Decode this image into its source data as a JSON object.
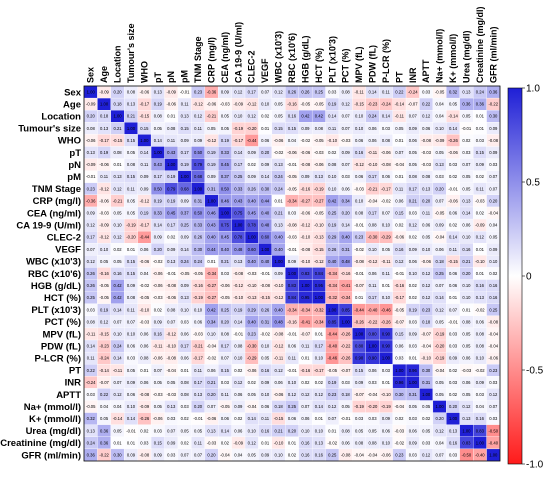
{
  "chart_data": {
    "type": "heatmap",
    "variables": [
      "Sex",
      "Age",
      "Location",
      "Tumour's size",
      "WHO",
      "pT",
      "pN",
      "pM",
      "TNM Stage",
      "CRP (mg/l)",
      "CEA (ng/ml)",
      "CA 19-9 (U/ml)",
      "CLEC-2",
      "VEGF",
      "WBC (x10'3)",
      "RBC (x10'6)",
      "HGB (g/dL)",
      "HCT (%)",
      "PLT (x10'3)",
      "PCT (%)",
      "MPV (fL)",
      "PDW (fL)",
      "P-LCR (%)",
      "PT",
      "INR",
      "APTT",
      "Na+ (mmol/l)",
      "K+ (mmol/l)",
      "Urea (mg/dl)",
      "Creatinine (mg/dl)",
      "GFR (ml/min)"
    ],
    "column_labels": [
      "Sex",
      "Age",
      "Location",
      "Tumour's size",
      "WHO",
      "pT",
      "pN",
      "pM",
      "TNM Stage",
      "CRP (mg/l)",
      "CEA (ng/ml)",
      "CA 19-9 (U/ml)",
      "CLEC-2",
      "VEGF",
      "WBC (x10'3)",
      "RBC (x10'6)",
      "HGB (g/dL)",
      "HCT (%)",
      "PLT (x10'3)",
      "PCT (%)",
      "MPV (fL)",
      "PDW (fL)",
      "P-LCR (%)",
      "PT",
      "INR",
      "APTT",
      "Na+ (mmol/l)",
      "K+ (mmol/l)",
      "Urea (mg/dl)",
      "Creatinine (mg/dl)",
      "GFR (ml/min)"
    ],
    "colorbar": {
      "range": [
        -1.0,
        1.0
      ],
      "ticks": [
        "1.0",
        "0.5",
        "0",
        "-0.5",
        "-1.0"
      ],
      "tick_values": [
        1.0,
        0.5,
        0,
        -0.5,
        -1.0
      ],
      "positive_color": "#1f1fd6",
      "zero_color": "#ffffff",
      "negative_color": "#ff1a1a"
    },
    "matrix": [
      [
        1.0,
        -0.09,
        0.2,
        0.08,
        -0.06,
        0.13,
        -0.09,
        -0.01,
        0.23,
        -0.36,
        0.09,
        0.12,
        0.17,
        0.07,
        0.12,
        0.26,
        0.26,
        0.25,
        0.03,
        0.08,
        -0.11,
        0.14,
        0.11,
        0.22,
        -0.24,
        0.03,
        -0.05,
        0.32,
        0.13,
        0.24,
        0.36
      ],
      [
        -0.09,
        1.0,
        0.18,
        0.13,
        -0.17,
        0.19,
        -0.06,
        0.11,
        -0.12,
        -0.06,
        -0.03,
        -0.09,
        -0.12,
        0.1,
        0.05,
        -0.16,
        -0.05,
        -0.05,
        0.19,
        0.12,
        -0.15,
        -0.23,
        -0.24,
        -0.14,
        -0.07,
        0.22,
        0.04,
        0.05,
        0.36,
        0.36,
        -0.22
      ],
      [
        0.2,
        0.18,
        1.0,
        0.21,
        -0.15,
        0.08,
        0.01,
        0.13,
        0.12,
        -0.21,
        0.05,
        0.1,
        0.12,
        0.02,
        0.05,
        0.16,
        0.42,
        0.42,
        0.14,
        0.07,
        0.1,
        0.24,
        0.14,
        -0.11,
        0.07,
        0.12,
        0.04,
        -0.14,
        0.05,
        0.01,
        0.3
      ],
      [
        0.08,
        0.13,
        0.21,
        1.0,
        0.15,
        0.05,
        0.08,
        0.15,
        0.11,
        0.05,
        0.05,
        -0.19,
        -0.2,
        0.01,
        0.15,
        0.15,
        0.09,
        0.08,
        0.11,
        0.07,
        0.1,
        0.06,
        0.03,
        0.05,
        0.09,
        0.06,
        0.1,
        0.14,
        -0.01,
        0.01,
        0.09
      ],
      [
        -0.06,
        -0.17,
        -0.15,
        0.15,
        1.0,
        0.14,
        0.11,
        0.09,
        0.09,
        -0.12,
        0.19,
        -0.17,
        -0.44,
        0.06,
        -0.06,
        0.04,
        -0.02,
        -0.05,
        -0.1,
        -0.03,
        0.06,
        0.06,
        0.08,
        0.01,
        0.06,
        -0.08,
        -0.09,
        -0.26,
        0.02,
        0.03,
        -0.08
      ],
      [
        0.13,
        0.19,
        0.08,
        0.05,
        0.14,
        1.0,
        0.43,
        0.17,
        0.5,
        0.19,
        0.33,
        0.14,
        0.09,
        0.2,
        -0.02,
        -0.06,
        -0.06,
        -0.03,
        0.02,
        0.09,
        0.16,
        -0.11,
        -0.06,
        0.07,
        0.05,
        -0.03,
        0.05,
        -0.06,
        0.03,
        0.15,
        0.09
      ],
      [
        -0.09,
        -0.06,
        0.01,
        0.08,
        0.11,
        0.43,
        1.0,
        0.19,
        0.79,
        0.19,
        0.45,
        0.17,
        0.02,
        0.09,
        0.13,
        -0.01,
        -0.08,
        -0.06,
        0.08,
        0.07,
        -0.12,
        -0.1,
        -0.08,
        -0.04,
        0.05,
        -0.03,
        0.13,
        0.03,
        0.07,
        0.09,
        0.03
      ],
      [
        -0.01,
        0.11,
        0.13,
        0.15,
        0.09,
        0.17,
        0.19,
        1.0,
        0.68,
        0.09,
        0.37,
        0.25,
        0.09,
        0.14,
        0.24,
        -0.05,
        0.09,
        0.13,
        0.1,
        0.03,
        0.06,
        0.17,
        0.06,
        0.01,
        0.08,
        0.08,
        0.03,
        0.02,
        0.05,
        0.02,
        0.07
      ],
      [
        0.23,
        -0.12,
        0.12,
        0.11,
        0.09,
        0.5,
        0.79,
        0.68,
        1.0,
        0.31,
        0.5,
        0.33,
        0.26,
        0.3,
        0.24,
        -0.05,
        -0.16,
        -0.19,
        0.1,
        0.06,
        -0.03,
        -0.21,
        -0.17,
        0.11,
        0.17,
        0.13,
        0.2,
        -0.01,
        0.05,
        0.11,
        0.07
      ],
      [
        -0.36,
        -0.06,
        -0.21,
        0.05,
        -0.12,
        0.19,
        0.19,
        0.09,
        0.31,
        1.0,
        0.46,
        0.43,
        0.4,
        0.44,
        0.01,
        -0.34,
        -0.27,
        -0.27,
        0.42,
        0.34,
        0.1,
        -0.04,
        -0.02,
        0.06,
        0.21,
        0.2,
        0.07,
        -0.06,
        0.13,
        -0.03,
        0.2
      ],
      [
        0.09,
        -0.03,
        0.05,
        0.05,
        0.19,
        0.33,
        0.45,
        0.37,
        0.5,
        0.46,
        1.0,
        0.75,
        0.45,
        0.4,
        0.21,
        0.03,
        -0.06,
        -0.05,
        0.25,
        0.2,
        0.08,
        0.17,
        0.07,
        0.15,
        0.03,
        0.11,
        -0.05,
        0.06,
        0.14,
        0.02,
        -0.04
      ],
      [
        0.12,
        -0.09,
        0.1,
        -0.19,
        -0.17,
        0.14,
        0.17,
        0.25,
        0.33,
        0.43,
        0.75,
        1.0,
        0.78,
        0.48,
        0.13,
        -0.08,
        -0.12,
        -0.1,
        0.19,
        0.14,
        -0.01,
        0.08,
        0.1,
        0.02,
        0.12,
        0.06,
        0.09,
        0.02,
        0.06,
        -0.09,
        0.04
      ],
      [
        0.17,
        -0.12,
        0.12,
        -0.2,
        -0.44,
        0.09,
        0.02,
        0.09,
        0.26,
        0.4,
        0.45,
        0.78,
        1.0,
        0.6,
        0.4,
        -0.03,
        -0.1,
        -0.13,
        0.29,
        0.4,
        0.23,
        -0.3,
        -0.29,
        -0.06,
        0.02,
        0.05,
        -0.04,
        0.14,
        0.1,
        0.12,
        0.05
      ],
      [
        0.07,
        0.1,
        0.02,
        0.01,
        0.06,
        0.2,
        0.09,
        0.14,
        0.3,
        0.44,
        0.4,
        0.48,
        0.6,
        1.0,
        0.4,
        -0.01,
        -0.08,
        -0.15,
        0.26,
        0.31,
        -0.02,
        0.1,
        0.05,
        0.16,
        0.09,
        0.1,
        0.06,
        0.11,
        0.16,
        0.01,
        0.09
      ],
      [
        0.12,
        0.05,
        0.05,
        0.15,
        -0.06,
        -0.02,
        0.13,
        0.24,
        0.24,
        0.01,
        0.21,
        0.13,
        0.4,
        0.4,
        1.0,
        0.09,
        -0.1,
        -0.12,
        0.4,
        0.48,
        -0.08,
        -0.12,
        -0.11,
        0.12,
        0.06,
        -0.06,
        0.18,
        -0.15,
        0.21,
        -0.1,
        0.1
      ],
      [
        0.26,
        -0.16,
        0.16,
        0.15,
        0.04,
        -0.06,
        -0.01,
        -0.05,
        -0.05,
        -0.34,
        0.03,
        -0.08,
        -0.03,
        -0.01,
        0.09,
        1.0,
        0.83,
        0.84,
        -0.34,
        -0.16,
        -0.01,
        0.06,
        0.11,
        -0.01,
        0.1,
        0.12,
        0.25,
        0.06,
        0.2,
        0.01,
        0.02
      ],
      [
        0.26,
        -0.05,
        0.42,
        0.09,
        -0.02,
        -0.06,
        -0.08,
        0.09,
        -0.16,
        -0.27,
        -0.06,
        -0.12,
        -0.1,
        -0.08,
        -0.1,
        0.83,
        1.0,
        0.95,
        -0.34,
        -0.41,
        -0.07,
        0.11,
        0.01,
        -0.16,
        0.02,
        0.12,
        0.07,
        0.06,
        0.1,
        0.16,
        0.16
      ],
      [
        0.25,
        -0.05,
        0.42,
        0.08,
        -0.05,
        -0.03,
        -0.06,
        0.13,
        -0.19,
        -0.27,
        -0.05,
        -0.1,
        -0.13,
        -0.15,
        -0.12,
        0.84,
        0.95,
        1.0,
        -0.32,
        -0.34,
        0.01,
        0.17,
        0.1,
        -0.17,
        0.02,
        0.12,
        0.14,
        0.01,
        0.1,
        0.13,
        0.16
      ],
      [
        0.03,
        0.19,
        0.14,
        0.11,
        -0.1,
        0.02,
        0.08,
        0.1,
        0.1,
        0.42,
        0.25,
        0.19,
        0.29,
        0.26,
        0.4,
        -0.34,
        -0.34,
        -0.32,
        1.0,
        0.85,
        -0.44,
        -0.4,
        -0.46,
        -0.05,
        0.19,
        0.23,
        0.12,
        0.07,
        0.01,
        -0.02,
        0.25
      ],
      [
        0.08,
        0.12,
        0.07,
        0.07,
        -0.03,
        0.09,
        0.07,
        0.03,
        0.06,
        0.34,
        0.2,
        0.14,
        0.4,
        0.31,
        0.48,
        -0.16,
        -0.41,
        -0.34,
        0.85,
        1.0,
        -0.26,
        -0.22,
        -0.26,
        -0.07,
        0.03,
        0.18,
        0.05,
        -0.01,
        0.08,
        0.06,
        -0.08
      ],
      [
        -0.11,
        -0.15,
        0.1,
        0.1,
        0.06,
        0.16,
        -0.12,
        0.06,
        -0.03,
        0.1,
        0.08,
        -0.01,
        0.23,
        -0.02,
        -0.08,
        -0.01,
        -0.07,
        0.01,
        -0.44,
        -0.26,
        1.0,
        0.8,
        0.9,
        0.15,
        0.09,
        -0.07,
        -0.19,
        0.03,
        0.05,
        0.08,
        -0.04
      ],
      [
        0.14,
        -0.23,
        0.24,
        0.06,
        0.06,
        -0.11,
        -0.1,
        0.17,
        -0.21,
        -0.04,
        0.17,
        0.08,
        -0.3,
        0.1,
        -0.12,
        0.06,
        0.11,
        0.17,
        -0.4,
        -0.22,
        0.8,
        1.0,
        0.9,
        0.06,
        0.03,
        -0.04,
        -0.2,
        0.03,
        0.05,
        0.08,
        -0.04
      ],
      [
        0.11,
        -0.24,
        0.14,
        0.03,
        0.08,
        -0.06,
        -0.08,
        0.06,
        -0.17,
        -0.02,
        0.07,
        0.1,
        -0.29,
        0.05,
        -0.11,
        0.11,
        0.01,
        0.1,
        -0.46,
        -0.26,
        0.9,
        0.9,
        1.0,
        0.03,
        0.01,
        -0.1,
        -0.19,
        0.09,
        0.06,
        0.1,
        -0.06
      ],
      [
        0.22,
        -0.14,
        -0.11,
        0.05,
        0.01,
        0.07,
        -0.04,
        0.01,
        0.11,
        0.06,
        0.15,
        0.02,
        -0.06,
        0.16,
        0.12,
        -0.01,
        -0.16,
        -0.17,
        -0.05,
        -0.07,
        0.15,
        0.06,
        0.03,
        1.0,
        0.96,
        0.3,
        -0.04,
        0.02,
        -0.03,
        -0.02,
        0.23
      ],
      [
        -0.24,
        -0.07,
        0.07,
        0.09,
        0.06,
        0.05,
        0.05,
        0.08,
        0.17,
        0.21,
        0.03,
        0.12,
        0.02,
        0.09,
        0.06,
        0.1,
        0.02,
        0.02,
        0.19,
        0.03,
        0.09,
        0.03,
        0.01,
        0.96,
        1.0,
        0.31,
        0.05,
        0.03,
        0.06,
        0.09,
        0.03
      ],
      [
        0.03,
        0.22,
        0.12,
        0.06,
        -0.08,
        -0.03,
        -0.03,
        0.08,
        0.13,
        0.2,
        0.11,
        0.06,
        0.05,
        0.1,
        -0.06,
        0.12,
        0.12,
        0.12,
        0.23,
        0.18,
        -0.07,
        -0.04,
        -0.1,
        0.3,
        0.31,
        1.0,
        0.05,
        0.02,
        0.05,
        0.03,
        0.12
      ],
      [
        -0.05,
        0.04,
        0.04,
        0.1,
        -0.09,
        0.05,
        0.13,
        0.03,
        0.2,
        0.07,
        -0.05,
        0.09,
        -0.04,
        0.06,
        0.18,
        0.25,
        0.07,
        0.14,
        0.12,
        0.05,
        -0.19,
        -0.2,
        -0.19,
        -0.04,
        0.05,
        0.05,
        1.0,
        0.2,
        0.12,
        0.04,
        0.07
      ],
      [
        0.32,
        0.05,
        -0.14,
        0.14,
        -0.26,
        -0.06,
        0.03,
        0.02,
        -0.01,
        -0.06,
        0.06,
        0.02,
        0.14,
        0.11,
        -0.15,
        0.06,
        0.06,
        0.01,
        0.07,
        -0.01,
        0.03,
        0.03,
        0.09,
        0.02,
        0.03,
        0.02,
        0.2,
        1.0,
        0.13,
        0.16,
        0.03
      ],
      [
        0.13,
        0.36,
        0.05,
        -0.01,
        0.02,
        0.03,
        0.07,
        0.05,
        0.05,
        0.13,
        0.14,
        0.06,
        0.1,
        0.16,
        0.21,
        0.2,
        0.1,
        0.1,
        0.01,
        0.08,
        0.05,
        0.05,
        0.06,
        -0.03,
        0.06,
        0.05,
        0.12,
        0.13,
        1.0,
        0.83,
        -0.5
      ],
      [
        0.24,
        0.36,
        0.01,
        0.01,
        0.03,
        0.15,
        0.09,
        0.02,
        0.11,
        -0.03,
        0.02,
        -0.09,
        0.12,
        0.01,
        -0.1,
        0.01,
        0.16,
        0.13,
        -0.02,
        0.06,
        0.08,
        0.08,
        0.1,
        -0.02,
        0.09,
        0.03,
        0.04,
        0.16,
        0.83,
        1.0,
        -0.4
      ],
      [
        0.36,
        -0.22,
        0.3,
        0.09,
        -0.08,
        0.09,
        0.03,
        0.07,
        0.07,
        0.2,
        -0.04,
        0.04,
        0.05,
        0.09,
        0.1,
        0.02,
        0.16,
        0.16,
        0.25,
        -0.08,
        -0.04,
        -0.04,
        -0.06,
        0.23,
        0.03,
        0.12,
        0.07,
        0.03,
        -0.5,
        -0.4,
        1.0
      ]
    ]
  }
}
